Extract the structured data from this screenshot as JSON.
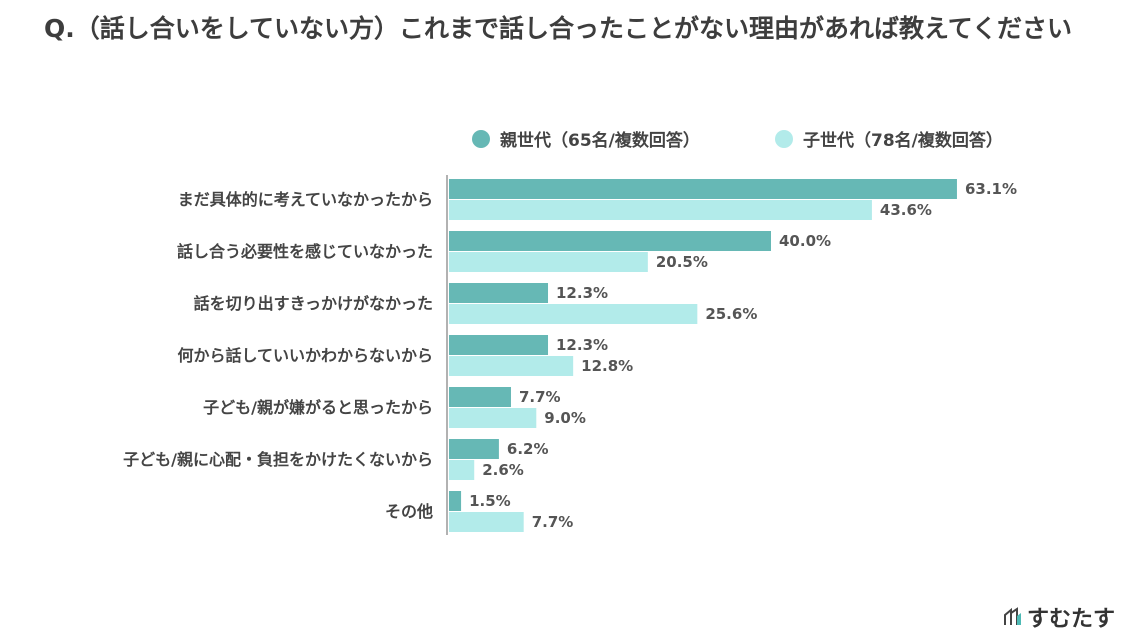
{
  "chart_data": {
    "type": "bar",
    "orientation": "horizontal",
    "title": "Q.（話し合いをしていない方）これまで話し合ったことがない理由があれば教えてください",
    "categories": [
      "まだ具体的に考えていなかったから",
      "話し合う必要性を感じていなかった",
      "話を切り出すきっかけがなかった",
      "何から話していいかわからないから",
      "子ども/親が嫌がると思ったから",
      "子ども/親に心配・負担をかけたくないから",
      "その他"
    ],
    "series": [
      {
        "name": "親世代（65名/複数回答）",
        "color": "#66b8b5",
        "values": [
          63.1,
          40.0,
          12.3,
          12.3,
          7.7,
          6.2,
          1.5
        ]
      },
      {
        "name": "子世代（78名/複数回答）",
        "color": "#b2ebea",
        "values": [
          43.6,
          20.5,
          25.6,
          12.8,
          9.0,
          2.6,
          7.7
        ]
      }
    ],
    "value_suffix": "%",
    "legend": "top-right",
    "grid": false
  },
  "logo": {
    "text": "すむたす"
  }
}
